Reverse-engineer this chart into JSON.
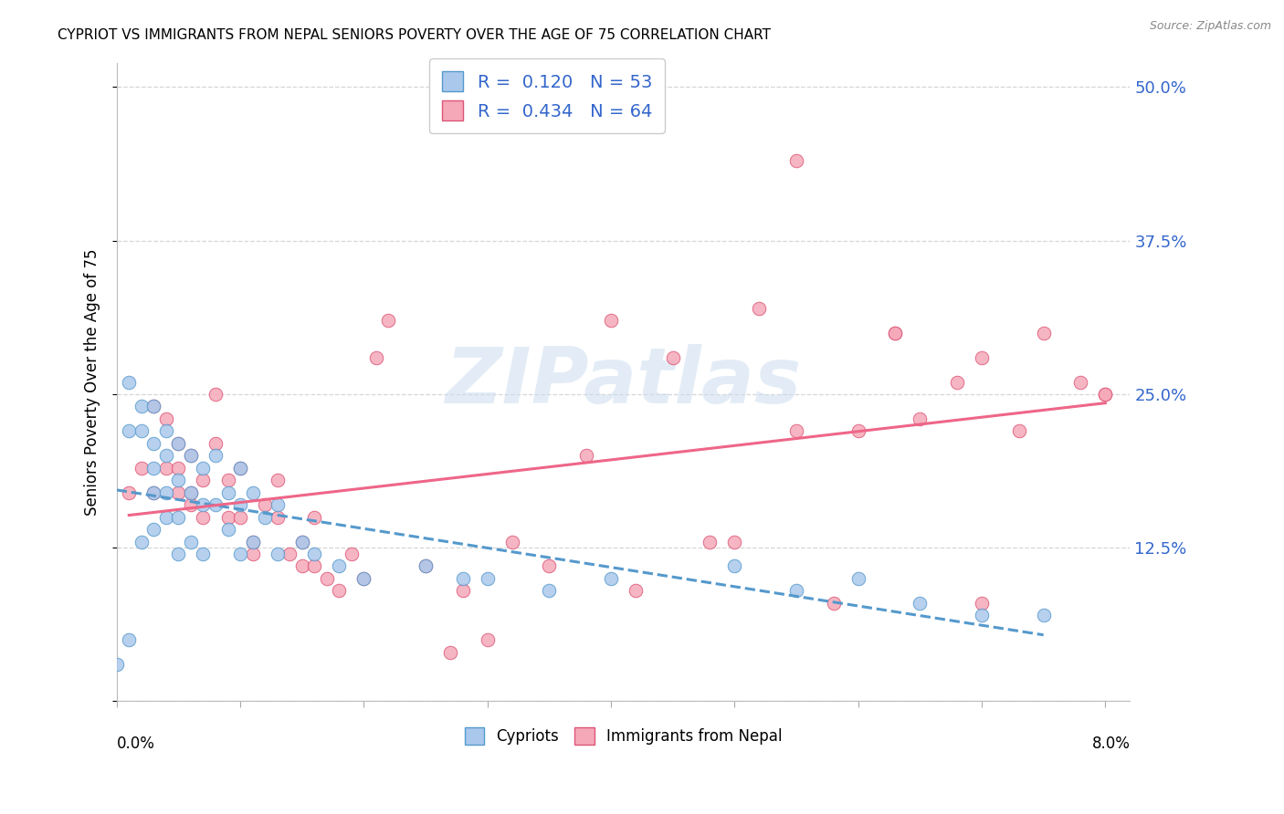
{
  "title": "CYPRIOT VS IMMIGRANTS FROM NEPAL SENIORS POVERTY OVER THE AGE OF 75 CORRELATION CHART",
  "source": "Source: ZipAtlas.com",
  "ylabel": "Seniors Poverty Over the Age of 75",
  "yticks": [
    0.0,
    0.125,
    0.25,
    0.375,
    0.5
  ],
  "ytick_labels": [
    "",
    "12.5%",
    "25.0%",
    "37.5%",
    "50.0%"
  ],
  "xlim": [
    0.0,
    0.082
  ],
  "ylim": [
    0.0,
    0.52
  ],
  "cypriot_color": "#aac8ec",
  "cypriot_edge_color": "#5599cc",
  "nepal_color": "#f5a8b8",
  "nepal_edge_color": "#dd5577",
  "trend_cypriot_color": "#5599cc",
  "trend_nepal_color": "#ee6688",
  "watermark_text": "ZIPatlas",
  "watermark_color": "#ddeeff",
  "legend_R_cypriot": "0.120",
  "legend_N_cypriot": "53",
  "legend_R_nepal": "0.434",
  "legend_N_nepal": "64",
  "cypriot_x": [
    0.0,
    0.001,
    0.001,
    0.001,
    0.002,
    0.002,
    0.002,
    0.003,
    0.003,
    0.003,
    0.003,
    0.003,
    0.004,
    0.004,
    0.004,
    0.004,
    0.005,
    0.005,
    0.005,
    0.005,
    0.006,
    0.006,
    0.006,
    0.007,
    0.007,
    0.007,
    0.008,
    0.008,
    0.009,
    0.009,
    0.01,
    0.01,
    0.01,
    0.011,
    0.011,
    0.012,
    0.013,
    0.013,
    0.015,
    0.016,
    0.018,
    0.02,
    0.025,
    0.028,
    0.03,
    0.035,
    0.04,
    0.05,
    0.055,
    0.06,
    0.065,
    0.07,
    0.075
  ],
  "cypriot_y": [
    0.03,
    0.26,
    0.22,
    0.05,
    0.24,
    0.22,
    0.13,
    0.24,
    0.21,
    0.19,
    0.17,
    0.14,
    0.22,
    0.2,
    0.17,
    0.15,
    0.21,
    0.18,
    0.15,
    0.12,
    0.2,
    0.17,
    0.13,
    0.19,
    0.16,
    0.12,
    0.2,
    0.16,
    0.17,
    0.14,
    0.19,
    0.16,
    0.12,
    0.17,
    0.13,
    0.15,
    0.16,
    0.12,
    0.13,
    0.12,
    0.11,
    0.1,
    0.11,
    0.1,
    0.1,
    0.09,
    0.1,
    0.11,
    0.09,
    0.1,
    0.08,
    0.07,
    0.07
  ],
  "nepal_x": [
    0.001,
    0.002,
    0.003,
    0.003,
    0.004,
    0.004,
    0.005,
    0.005,
    0.005,
    0.006,
    0.006,
    0.006,
    0.007,
    0.007,
    0.008,
    0.008,
    0.009,
    0.009,
    0.01,
    0.01,
    0.011,
    0.011,
    0.012,
    0.013,
    0.013,
    0.014,
    0.015,
    0.015,
    0.016,
    0.016,
    0.017,
    0.018,
    0.019,
    0.02,
    0.021,
    0.022,
    0.025,
    0.027,
    0.028,
    0.03,
    0.032,
    0.035,
    0.038,
    0.04,
    0.042,
    0.045,
    0.048,
    0.05,
    0.052,
    0.055,
    0.058,
    0.06,
    0.063,
    0.065,
    0.068,
    0.07,
    0.073,
    0.075,
    0.078,
    0.08,
    0.08,
    0.055,
    0.063,
    0.07
  ],
  "nepal_y": [
    0.17,
    0.19,
    0.17,
    0.24,
    0.19,
    0.23,
    0.17,
    0.21,
    0.19,
    0.17,
    0.2,
    0.16,
    0.15,
    0.18,
    0.21,
    0.25,
    0.15,
    0.18,
    0.15,
    0.19,
    0.13,
    0.12,
    0.16,
    0.15,
    0.18,
    0.12,
    0.11,
    0.13,
    0.15,
    0.11,
    0.1,
    0.09,
    0.12,
    0.1,
    0.28,
    0.31,
    0.11,
    0.04,
    0.09,
    0.05,
    0.13,
    0.11,
    0.2,
    0.31,
    0.09,
    0.28,
    0.13,
    0.13,
    0.32,
    0.22,
    0.08,
    0.22,
    0.3,
    0.23,
    0.26,
    0.08,
    0.22,
    0.3,
    0.26,
    0.25,
    0.25,
    0.44,
    0.3,
    0.28
  ]
}
